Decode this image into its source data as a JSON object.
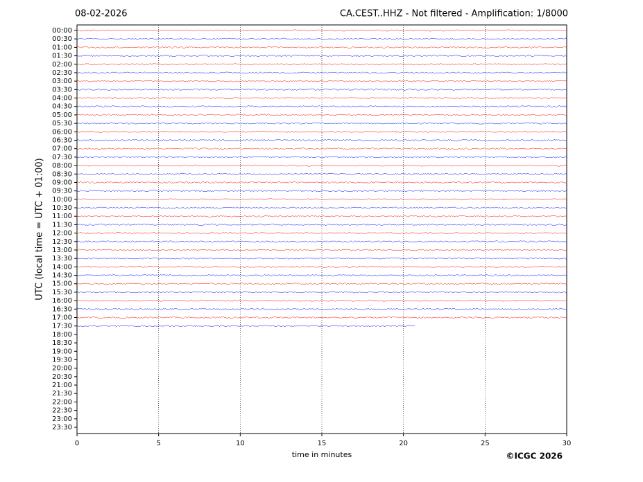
{
  "chart_data": {
    "type": "helicorder",
    "title": "CA.CEST..HHZ - Not filtered - Amplification: 1/8000",
    "subtitle": "08-02-2026",
    "xlabel": "time in minutes",
    "ylabel": "UTC (local time = UTC + 01:00)",
    "footer": "©ICGC 2026",
    "xlim": [
      0,
      30
    ],
    "xticks": [
      0,
      5,
      10,
      15,
      20,
      25,
      30
    ],
    "grid": true,
    "colors": [
      "#ff0000",
      "#0000ff"
    ],
    "categories": [
      "00:00",
      "00:30",
      "01:00",
      "01:30",
      "02:00",
      "02:30",
      "03:00",
      "03:30",
      "04:00",
      "04:30",
      "05:00",
      "05:30",
      "06:00",
      "06:30",
      "07:00",
      "07:30",
      "08:00",
      "08:30",
      "09:00",
      "09:30",
      "10:00",
      "10:30",
      "11:00",
      "11:30",
      "12:00",
      "12:30",
      "13:00",
      "13:30",
      "14:00",
      "14:30",
      "15:00",
      "15:30",
      "16:00",
      "16:30",
      "17:00",
      "17:30",
      "18:00",
      "18:30",
      "19:00",
      "19:30",
      "20:00",
      "20:30",
      "21:00",
      "21:30",
      "22:00",
      "22:30",
      "23:00",
      "23:30"
    ],
    "values": [
      30,
      30,
      30,
      30,
      30,
      30,
      30,
      30,
      30,
      30,
      30,
      30,
      30,
      30,
      30,
      30,
      30,
      30,
      30,
      30,
      30,
      30,
      30,
      30,
      30,
      30,
      30,
      30,
      30,
      30,
      30,
      30,
      30,
      30,
      30,
      20.7,
      null,
      null,
      null,
      null,
      null,
      null,
      null,
      null,
      null,
      null,
      null,
      null
    ]
  }
}
